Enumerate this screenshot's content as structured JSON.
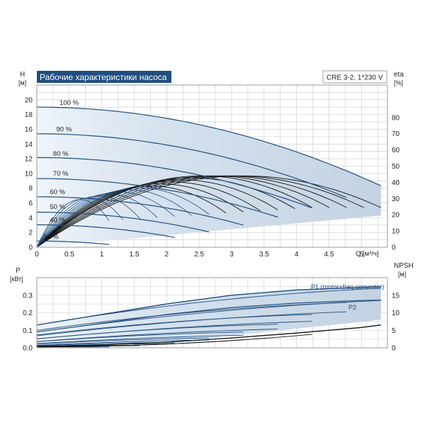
{
  "colors": {
    "grid": "#c8c8c8",
    "frame": "#999999",
    "envelope": "#c9d6e4",
    "envelope_light": "#e3edf7",
    "curve": "#1f4e80",
    "black": "#111111",
    "title_bg": "#1f4e80",
    "title_fg": "#ffffff",
    "label_blue": "#1f4e80"
  },
  "chart_data": [
    {
      "type": "line",
      "title": "Рабочие характеристики насоса",
      "model": "CRE 3-2, 1*230 V",
      "y_label": "H",
      "y_unit": "[м]",
      "y2_label": "eta",
      "y2_unit": "[%]",
      "x_label": "Q [м³/ч]",
      "xlim": [
        0,
        5.4
      ],
      "ylim": [
        0,
        22
      ],
      "y2lim": [
        0,
        100
      ],
      "x_ticks": [
        "0",
        "0.5",
        "1",
        "1.5",
        "2",
        "2.5",
        "3",
        "3.5",
        "4",
        "4.5",
        "5"
      ],
      "y_ticks": [
        "0",
        "2",
        "4",
        "6",
        "8",
        "10",
        "12",
        "14",
        "16",
        "18",
        "20"
      ],
      "y2_ticks": [
        "0",
        "10",
        "20",
        "30",
        "40",
        "50",
        "60",
        "70",
        "80"
      ],
      "grid": true,
      "head_curves": [
        {
          "label": "100 %",
          "speed": 1.0,
          "label_at": [
            0.35,
            19.3
          ]
        },
        {
          "label": "90 %",
          "speed": 0.9,
          "label_at": [
            0.3,
            15.7
          ]
        },
        {
          "label": "80 %",
          "speed": 0.8,
          "label_at": [
            0.25,
            12.4
          ]
        },
        {
          "label": "70 %",
          "speed": 0.7,
          "label_at": [
            0.25,
            9.7
          ]
        },
        {
          "label": "60 %",
          "speed": 0.6,
          "label_at": [
            0.2,
            7.2
          ]
        },
        {
          "label": "50 %",
          "speed": 0.5,
          "label_at": [
            0.2,
            5.2
          ]
        },
        {
          "label": "40 %",
          "speed": 0.4,
          "label_at": [
            0.2,
            3.4
          ]
        },
        {
          "label": "21 %",
          "speed": 0.21,
          "label_at": [
            0.1,
            1.1
          ]
        }
      ],
      "head_at_zero_flow_100pct": 19.0,
      "head_coefficient": 0.38,
      "max_flow_100pct": 5.3,
      "eta_max_percent": 44
    },
    {
      "type": "line",
      "y_label": "P",
      "y_unit": "[кВт]",
      "y2_label": "NPSH",
      "y2_unit": "[м]",
      "xlim": [
        0,
        5.4
      ],
      "ylim": [
        0,
        0.4
      ],
      "y2lim": [
        0,
        20
      ],
      "y_ticks": [
        "0.0",
        "0.1",
        "0.2",
        "0.3"
      ],
      "y2_ticks": [
        "0",
        "5",
        "10",
        "15"
      ],
      "grid": true,
      "series": [
        {
          "name": "P1 (motor+freq.converter)",
          "x": [
            0,
            1,
            2,
            3,
            4,
            5,
            5.3
          ],
          "y": [
            0.13,
            0.19,
            0.25,
            0.3,
            0.33,
            0.345,
            0.348
          ]
        },
        {
          "name": "P2",
          "x": [
            0,
            1,
            2,
            3,
            4,
            5,
            5.3
          ],
          "y": [
            0.09,
            0.14,
            0.19,
            0.23,
            0.255,
            0.27,
            0.272
          ]
        },
        {
          "name": "NPSH",
          "x": [
            0,
            1,
            2,
            3,
            4,
            5,
            5.3
          ],
          "y2": [
            0.4,
            0.8,
            1.6,
            2.8,
            4.2,
            5.8,
            6.5
          ]
        }
      ]
    }
  ]
}
